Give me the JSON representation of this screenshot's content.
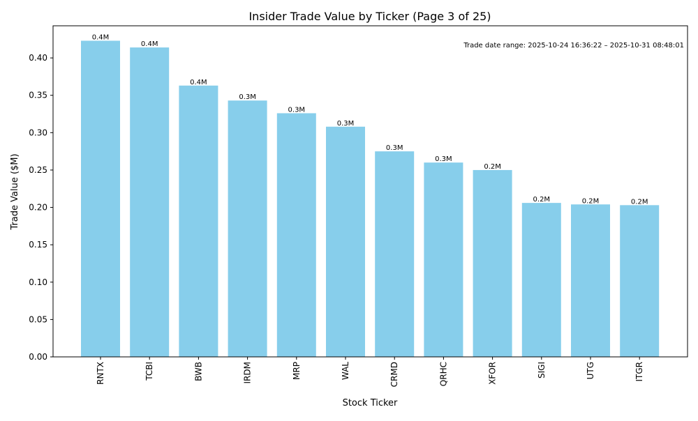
{
  "chart_data": {
    "type": "bar",
    "title": "Insider Trade Value by Ticker (Page 3 of 25)",
    "xlabel": "Stock Ticker",
    "ylabel": "Trade Value ($M)",
    "categories": [
      "RNTX",
      "TCBI",
      "BWB",
      "IRDM",
      "MRP",
      "WAL",
      "CRMD",
      "QRHC",
      "XFOR",
      "SIGI",
      "UTG",
      "ITGR"
    ],
    "values": [
      0.423,
      0.414,
      0.363,
      0.343,
      0.326,
      0.308,
      0.275,
      0.26,
      0.25,
      0.206,
      0.204,
      0.203
    ],
    "data_labels": [
      "0.4M",
      "0.4M",
      "0.4M",
      "0.3M",
      "0.3M",
      "0.3M",
      "0.3M",
      "0.3M",
      "0.2M",
      "0.2M",
      "0.2M",
      "0.2M"
    ],
    "ylim": [
      0,
      0.443
    ],
    "yticks": [
      0.0,
      0.05,
      0.1,
      0.15,
      0.2,
      0.25,
      0.3,
      0.35,
      0.4
    ],
    "ytick_labels": [
      "0.00",
      "0.05",
      "0.10",
      "0.15",
      "0.20",
      "0.25",
      "0.30",
      "0.35",
      "0.40"
    ],
    "annotation": "Trade date range: 2025-10-24 16:36:22 – 2025-10-31 08:48:01",
    "grid": false,
    "bar_color": "#87CEEB"
  }
}
